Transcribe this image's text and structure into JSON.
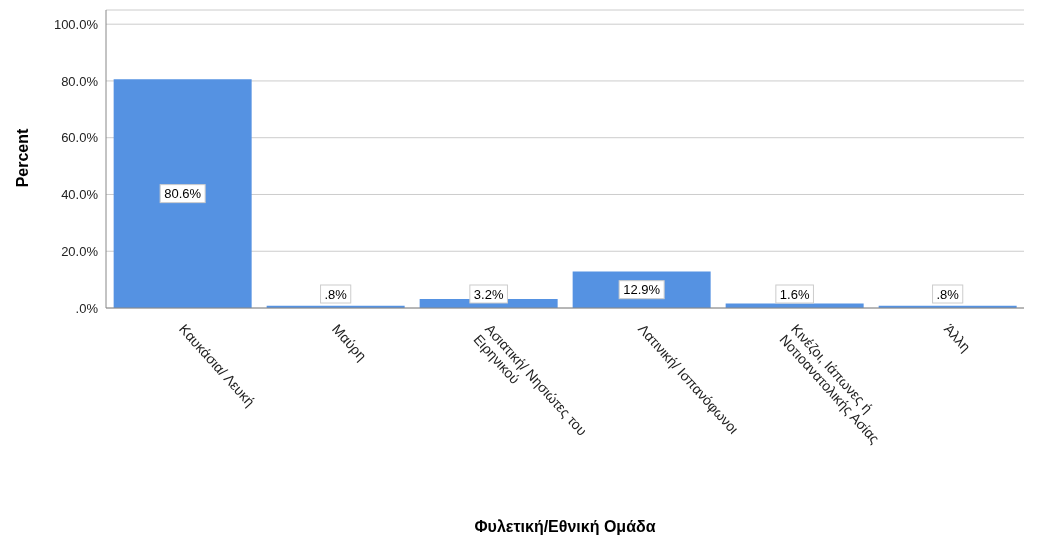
{
  "chart_data": {
    "type": "bar",
    "xlabel": "Φυλετική/Εθνική Ομάδα",
    "ylabel": "Percent",
    "categories": [
      "Καυκάσια/ Λευκή",
      "Μαύρη",
      "Ασιατική/ Νησιώτες του Ειρηνικού",
      "Λατινική/ Ισπανόφωνοι",
      "Κινέζοι, Ιάπωνες ή Νοτιοανατολικής Ασίας",
      "Άλλη"
    ],
    "values": [
      80.6,
      0.8,
      3.2,
      12.9,
      1.6,
      0.8
    ],
    "value_labels": [
      "80.6%",
      ".8%",
      "3.2%",
      "12.9%",
      "1.6%",
      ".8%"
    ],
    "color": "#5592e2",
    "ylim": [
      0,
      105
    ],
    "yticks": [
      {
        "value": 0,
        "label": ".0%"
      },
      {
        "value": 20,
        "label": "20.0%"
      },
      {
        "value": 40,
        "label": "40.0%"
      },
      {
        "value": 60,
        "label": "60.0%"
      },
      {
        "value": 80,
        "label": "80.0%"
      },
      {
        "value": 100,
        "label": "100.0%"
      }
    ],
    "grid": "y"
  }
}
